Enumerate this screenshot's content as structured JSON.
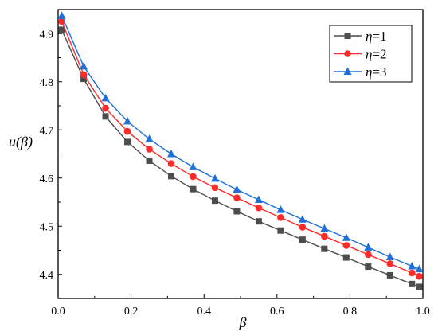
{
  "chart_data": {
    "type": "line",
    "xlabel": "β",
    "ylabel": "u(β)",
    "xlim": [
      0.0,
      1.0
    ],
    "ylim": [
      4.35,
      4.95
    ],
    "xticks": [
      0.0,
      0.2,
      0.4,
      0.6,
      0.8,
      1.0
    ],
    "xtick_labels": [
      "0.0",
      "0.2",
      "0.4",
      "0.6",
      "0.8",
      "1.0"
    ],
    "yticks": [
      4.4,
      4.5,
      4.6,
      4.7,
      4.8,
      4.9
    ],
    "ytick_labels": [
      "4.4",
      "4.5",
      "4.6",
      "4.7",
      "4.8",
      "4.9"
    ],
    "legend_position": "top-right",
    "grid": false,
    "x": [
      0.01,
      0.07,
      0.13,
      0.19,
      0.25,
      0.31,
      0.37,
      0.43,
      0.49,
      0.55,
      0.61,
      0.67,
      0.73,
      0.79,
      0.85,
      0.91,
      0.97,
      0.99
    ],
    "series": [
      {
        "name": "η=1",
        "name_symbol": "η",
        "name_value": "=1",
        "color": "#4d4d4d",
        "marker": "square",
        "values": [
          4.908,
          4.806,
          4.728,
          4.675,
          4.636,
          4.604,
          4.577,
          4.553,
          4.531,
          4.51,
          4.491,
          4.472,
          4.453,
          4.435,
          4.416,
          4.398,
          4.38,
          4.374
        ]
      },
      {
        "name": "η=2",
        "name_symbol": "η",
        "name_value": "=2",
        "color": "#ff2b2b",
        "marker": "circle",
        "values": [
          4.925,
          4.815,
          4.745,
          4.697,
          4.66,
          4.63,
          4.603,
          4.58,
          4.559,
          4.538,
          4.518,
          4.498,
          4.479,
          4.46,
          4.441,
          4.422,
          4.403,
          4.396
        ]
      },
      {
        "name": "η=3",
        "name_symbol": "η",
        "name_value": "=3",
        "color": "#1f6fd6",
        "marker": "triangle",
        "values": [
          4.937,
          4.832,
          4.766,
          4.718,
          4.681,
          4.65,
          4.623,
          4.599,
          4.576,
          4.555,
          4.534,
          4.514,
          4.495,
          4.476,
          4.456,
          4.436,
          4.417,
          4.411
        ]
      }
    ]
  }
}
